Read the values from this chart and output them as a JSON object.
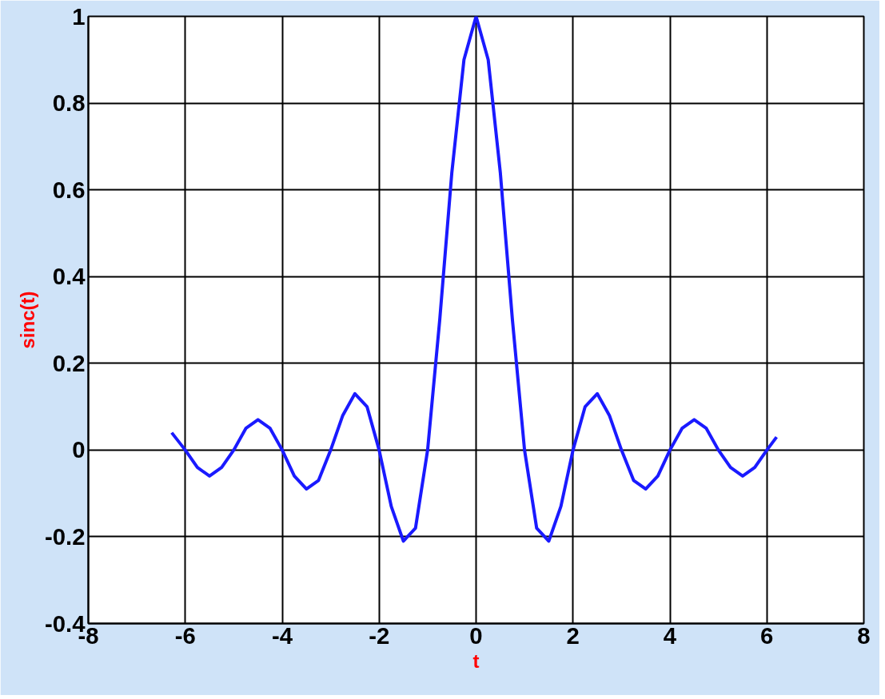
{
  "chart_data": {
    "type": "line",
    "xlabel": "t",
    "ylabel": "sinc(t)",
    "xlim": [
      -8,
      8
    ],
    "xticks": [
      -8,
      -6,
      -4,
      -2,
      0,
      2,
      4,
      6,
      8
    ],
    "ylim": [
      -0.4,
      1
    ],
    "yticks": [
      -0.4,
      -0.2,
      0,
      0.2,
      0.4,
      0.6,
      0.8,
      1
    ],
    "grid": true,
    "series": [
      {
        "color": "#1a1aff",
        "x": [
          -6.28,
          -6,
          -5.75,
          -5.5,
          -5.25,
          -5,
          -4.75,
          -4.5,
          -4.25,
          -4,
          -3.75,
          -3.5,
          -3.25,
          -3,
          -2.75,
          -2.5,
          -2.25,
          -2,
          -1.75,
          -1.5,
          -1.25,
          -1,
          -0.75,
          -0.5,
          -0.25,
          0,
          0.25,
          0.5,
          0.75,
          1,
          1.25,
          1.5,
          1.75,
          2,
          2.25,
          2.5,
          2.75,
          3,
          3.25,
          3.5,
          3.75,
          4,
          4.25,
          4.5,
          4.75,
          5,
          5.25,
          5.5,
          5.75,
          6,
          6.2
        ],
        "values": [
          0.04,
          0,
          -0.04,
          -0.06,
          -0.04,
          0,
          0.05,
          0.07,
          0.05,
          0,
          -0.06,
          -0.09,
          -0.07,
          0,
          0.08,
          0.13,
          0.1,
          0,
          -0.13,
          -0.21,
          -0.18,
          0,
          0.3,
          0.64,
          0.9,
          1,
          0.9,
          0.64,
          0.3,
          0,
          -0.18,
          -0.21,
          -0.13,
          0,
          0.1,
          0.13,
          0.08,
          0,
          -0.07,
          -0.09,
          -0.06,
          0,
          0.05,
          0.07,
          0.05,
          0,
          -0.04,
          -0.06,
          -0.04,
          0,
          0.03
        ]
      }
    ]
  }
}
